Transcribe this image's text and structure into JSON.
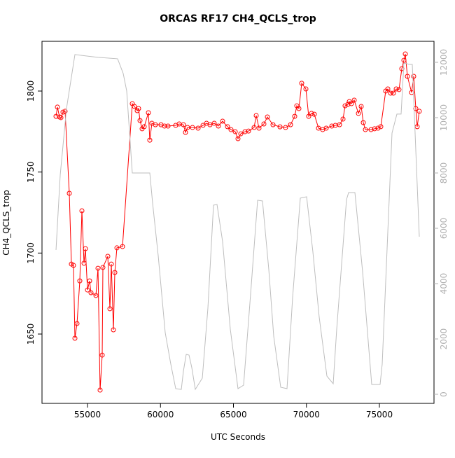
{
  "chart_data": {
    "type": "line",
    "title": "ORCAS RF17 CH4_QCLS_trop",
    "xlabel": "UTC Seconds",
    "ylabel": "CH4_QCLS_trop",
    "xlim": [
      51882,
      78741
    ],
    "ylim": [
      1607.2,
      1830.7
    ],
    "y2lim": [
      -329,
      12759
    ],
    "xticks": [
      55000,
      60000,
      65000,
      70000,
      75000
    ],
    "yticks": [
      1650,
      1700,
      1750,
      1800
    ],
    "y2ticks": [
      0,
      2000,
      4000,
      6000,
      8000,
      10000,
      12000
    ],
    "series": [
      {
        "color": "#ff0000",
        "marker": "circle",
        "x": [
          52842,
          52938,
          53082,
          53178,
          53321,
          53465,
          53753,
          53897,
          54041,
          54137,
          54281,
          54472,
          54616,
          54760,
          54856,
          55000,
          55144,
          55240,
          55576,
          55719,
          55863,
          56007,
          56055,
          56391,
          56535,
          56631,
          56775,
          56871,
          57014,
          57398,
          58069,
          58213,
          58405,
          58501,
          58597,
          58741,
          58885,
          59173,
          59268,
          59412,
          59652,
          60036,
          60276,
          60515,
          61043,
          61283,
          61571,
          61714,
          61858,
          62194,
          62578,
          62913,
          63153,
          63393,
          63681,
          63969,
          64256,
          64592,
          64832,
          65120,
          65311,
          65503,
          65791,
          66031,
          66415,
          66559,
          66751,
          67086,
          67326,
          67710,
          68190,
          68573,
          68909,
          69197,
          69341,
          69485,
          69677,
          69964,
          70156,
          70348,
          70540,
          70827,
          71115,
          71355,
          71739,
          71979,
          72267,
          72506,
          72650,
          72842,
          72938,
          73082,
          73274,
          73561,
          73753,
          73897,
          74041,
          74425,
          74665,
          74904,
          75096,
          75432,
          75576,
          75768,
          75960,
          76152,
          76343,
          76535,
          76679,
          76775,
          76919,
          77206,
          77350,
          77494,
          77590,
          77734
        ],
        "values": [
          1784.4,
          1790.1,
          1784.0,
          1783.6,
          1787.0,
          1787.5,
          1736.9,
          1693.2,
          1692.4,
          1647.4,
          1656.5,
          1682.8,
          1726.1,
          1693.7,
          1702.7,
          1677.2,
          1682.8,
          1675.5,
          1673.8,
          1690.6,
          1615.4,
          1637.0,
          1691.1,
          1698.0,
          1665.6,
          1693.2,
          1652.6,
          1688.0,
          1703.2,
          1704.0,
          1792.2,
          1790.5,
          1787.9,
          1789.2,
          1781.8,
          1776.7,
          1778.0,
          1786.6,
          1769.7,
          1780.1,
          1779.2,
          1779.2,
          1778.4,
          1778.4,
          1778.8,
          1779.7,
          1779.2,
          1774.5,
          1777.5,
          1777.5,
          1777.1,
          1778.8,
          1780.1,
          1779.2,
          1780.1,
          1778.4,
          1781.4,
          1778.0,
          1776.2,
          1774.9,
          1770.6,
          1773.6,
          1774.9,
          1775.3,
          1777.5,
          1784.9,
          1777.1,
          1779.7,
          1784.0,
          1779.2,
          1777.9,
          1777.5,
          1779.2,
          1784.4,
          1790.9,
          1789.2,
          1804.8,
          1801.3,
          1784.4,
          1786.2,
          1785.7,
          1777.1,
          1776.2,
          1777.1,
          1778.4,
          1778.8,
          1779.2,
          1782.7,
          1790.9,
          1791.8,
          1793.5,
          1792.2,
          1794.4,
          1786.2,
          1790.5,
          1780.5,
          1776.2,
          1776.2,
          1776.7,
          1777.1,
          1778.0,
          1800.0,
          1801.3,
          1798.7,
          1798.7,
          1801.3,
          1800.9,
          1813.8,
          1819.0,
          1822.9,
          1809.1,
          1799.1,
          1809.1,
          1789.2,
          1778.0,
          1787.5
        ]
      },
      {
        "color": "#bebebe",
        "axis": "y2",
        "x": [
          52842,
          53130,
          53561,
          54137,
          55720,
          57062,
          57446,
          57686,
          58069,
          59268,
          59460,
          59844,
          60324,
          60707,
          61043,
          61427,
          61571,
          61763,
          61955,
          62146,
          62386,
          62866,
          63249,
          63633,
          63873,
          64256,
          64784,
          65311,
          65695,
          66175,
          66655,
          66990,
          67422,
          67758,
          68238,
          68669,
          69053,
          69581,
          70013,
          70444,
          70876,
          71403,
          71835,
          72075,
          72746,
          72890,
          73322,
          73849,
          74473,
          75048,
          75192,
          75864,
          76199,
          76487,
          76679,
          77062,
          77254,
          77446,
          77734
        ],
        "values": [
          5216,
          7925,
          10331,
          12280,
          12179,
          12128,
          11597,
          10964,
          8001,
          8001,
          6912,
          5013,
          2228,
          1089,
          203,
          177,
          836,
          1443,
          1418,
          962,
          177,
          582,
          3114,
          6836,
          6862,
          5520,
          2355,
          203,
          329,
          3621,
          7014,
          6988,
          4507,
          2102,
          253,
          203,
          3494,
          7090,
          7140,
          5140,
          2785,
          658,
          380,
          2355,
          7039,
          7292,
          7292,
          4431,
          354,
          354,
          1089,
          9444,
          10128,
          10128,
          11976,
          11925,
          11925,
          9444,
          5697
        ]
      }
    ]
  }
}
